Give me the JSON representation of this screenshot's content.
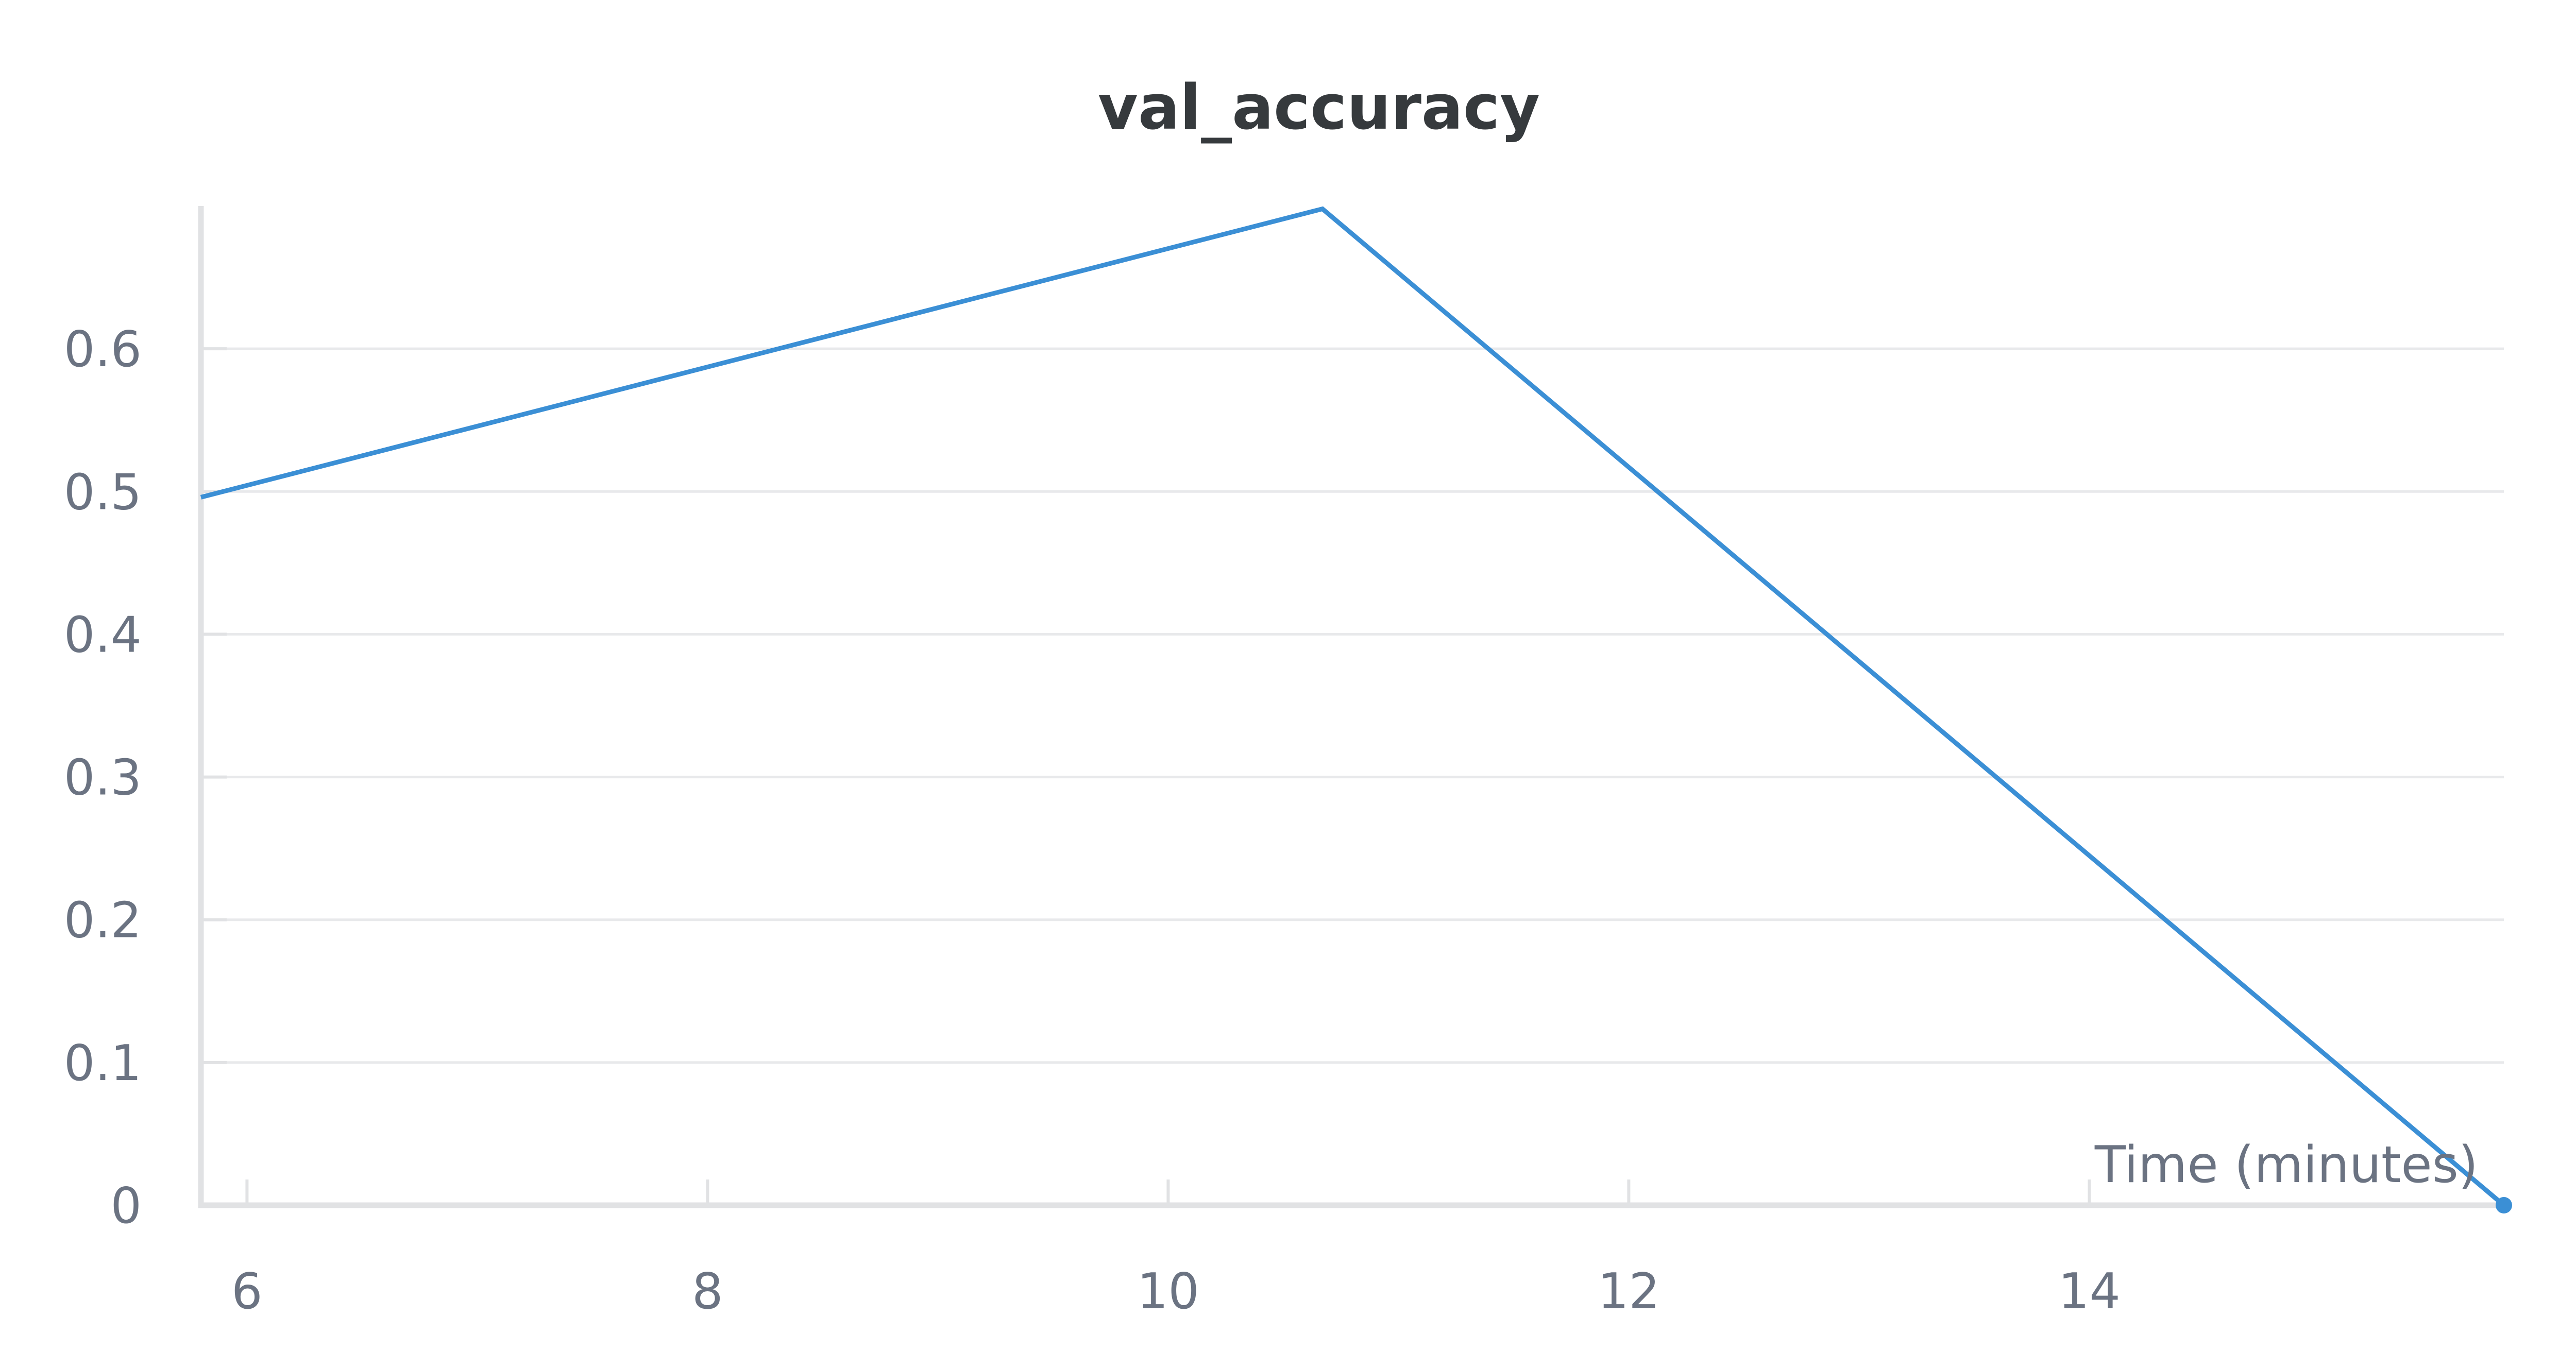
{
  "chart_data": {
    "type": "line",
    "title": "val_accuracy",
    "xlabel": "Time (minutes)",
    "ylabel": "",
    "xlim": [
      5.8,
      15.8
    ],
    "ylim": [
      0,
      0.7
    ],
    "x_ticks": [
      6,
      8,
      10,
      12,
      14
    ],
    "y_ticks": [
      0,
      0.1,
      0.2,
      0.3,
      0.4,
      0.5,
      0.6
    ],
    "grid": true,
    "series": [
      {
        "color": "#3b8fd5",
        "x": [
          5.8,
          10.67,
          15.8
        ],
        "y": [
          0.496,
          0.698,
          0.0
        ]
      }
    ]
  }
}
